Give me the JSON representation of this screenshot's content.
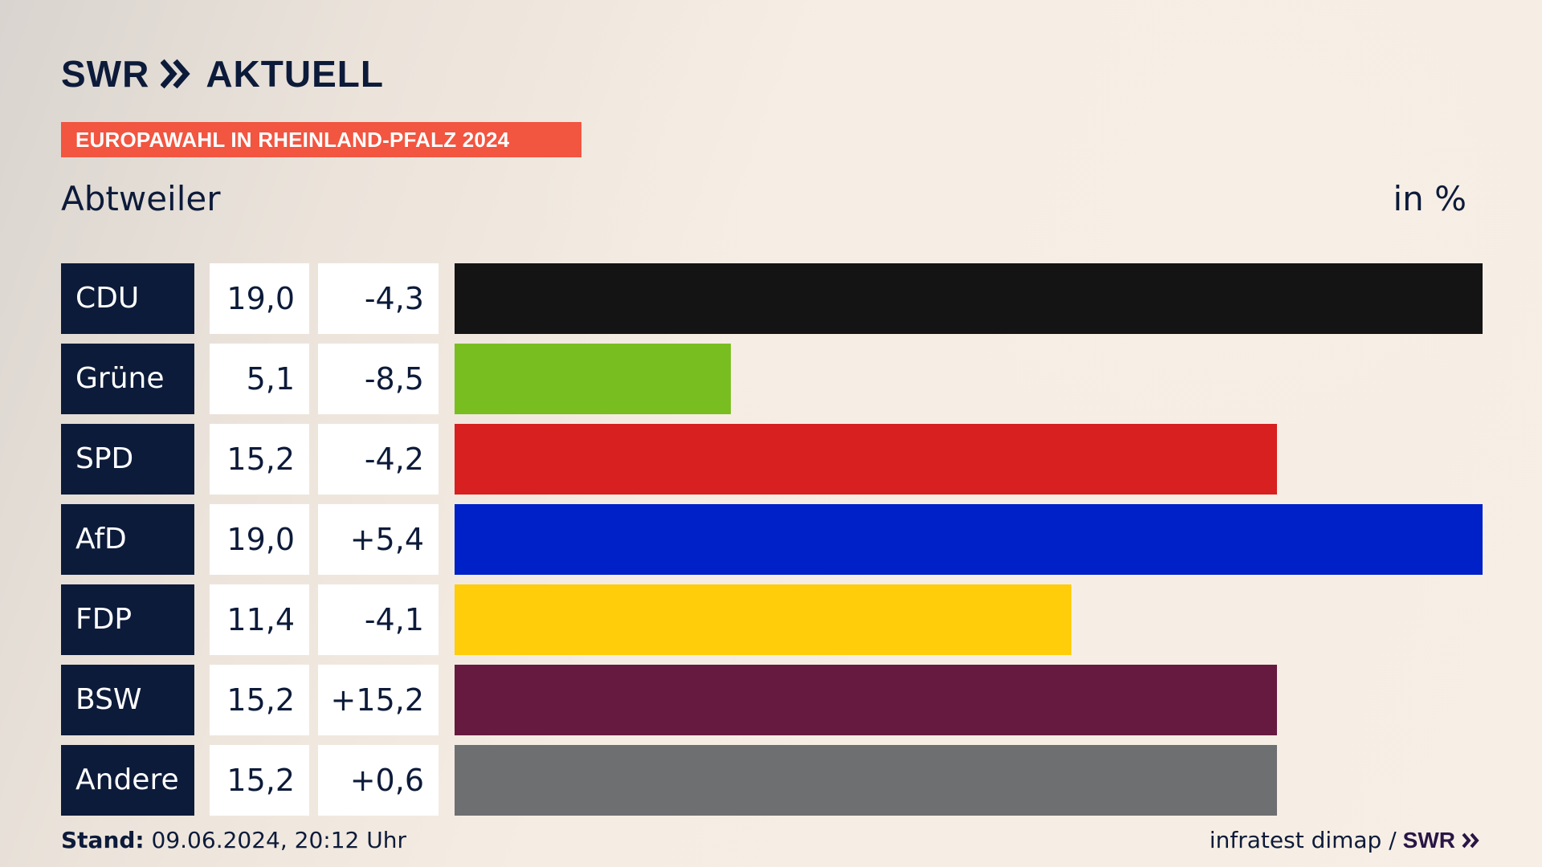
{
  "brand": {
    "name": "SWR",
    "product": "AKTUELL",
    "color": "#0d1b3a"
  },
  "tag": {
    "label": "EUROPAWAHL IN RHEINLAND-PFALZ 2024",
    "color": "#f25540"
  },
  "place": "Abtweiler",
  "unit": "in %",
  "footer": {
    "stand_label": "Stand:",
    "stand_value": "09.06.2024, 20:12 Uhr",
    "source": "infratest dimap /",
    "source_brand": "SWR"
  },
  "chart_data": {
    "type": "bar",
    "orientation": "horizontal",
    "title": "Abtweiler",
    "unit": "in %",
    "categories": [
      "CDU",
      "Grüne",
      "SPD",
      "AfD",
      "FDP",
      "BSW",
      "Andere"
    ],
    "values": [
      19.0,
      5.1,
      15.2,
      19.0,
      11.4,
      15.2,
      15.2
    ],
    "value_labels": [
      "19,0",
      "5,1",
      "15,2",
      "19,0",
      "11,4",
      "15,2",
      "15,2"
    ],
    "changes": [
      -4.3,
      -8.5,
      -4.2,
      5.4,
      -4.1,
      15.2,
      0.6
    ],
    "change_labels": [
      "-4,3",
      "-8,5",
      "-4,2",
      "+5,4",
      "-4,1",
      "+15,2",
      "+0,6"
    ],
    "colors": [
      "#141414",
      "#78be20",
      "#d7201f",
      "#0020c8",
      "#ffcd0a",
      "#661a40",
      "#6e6f71"
    ],
    "xlim": [
      0,
      19.0
    ],
    "grid": false
  }
}
